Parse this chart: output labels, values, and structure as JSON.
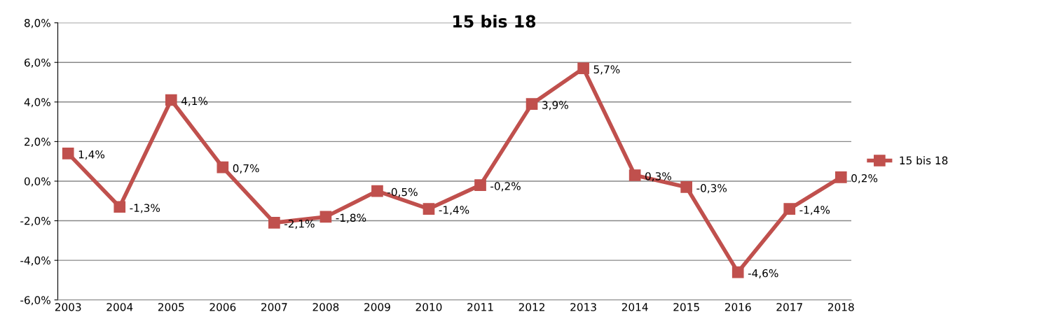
{
  "chart_data": {
    "type": "line",
    "title": "15 bis 18",
    "categories": [
      "2003",
      "2004",
      "2005",
      "2006",
      "2007",
      "2008",
      "2009",
      "2010",
      "2011",
      "2012",
      "2013",
      "2014",
      "2015",
      "2016",
      "2017",
      "2018"
    ],
    "series": [
      {
        "name": "15 bis 18",
        "color": "#c0504d",
        "values": [
          1.4,
          -1.3,
          4.1,
          0.7,
          -2.1,
          -1.8,
          -0.5,
          -1.4,
          -0.2,
          3.9,
          5.7,
          0.3,
          -0.3,
          -4.6,
          -1.4,
          0.2
        ],
        "value_labels": [
          "1,4%",
          "-1,3%",
          "4,1%",
          "0,7%",
          "-2,1%",
          "-1,8%",
          "-0,5%",
          "-1,4%",
          "-0,2%",
          "3,9%",
          "5,7%",
          "0,3%",
          "-0,3%",
          "-4,6%",
          "-1,4%",
          "0,2%"
        ]
      }
    ],
    "ylim": [
      -6,
      8
    ],
    "yticks": [
      {
        "value": -6,
        "label": "-6,0%"
      },
      {
        "value": -4,
        "label": "-4,0%"
      },
      {
        "value": -2,
        "label": "-2,0%"
      },
      {
        "value": 0,
        "label": "0,0%"
      },
      {
        "value": 2,
        "label": "2,0%"
      },
      {
        "value": 4,
        "label": "4,0%"
      },
      {
        "value": 6,
        "label": "6,0%"
      },
      {
        "value": 8,
        "label": "8,0%"
      }
    ],
    "grid": "y",
    "legend": "right",
    "marker": "square",
    "line_style": "solid"
  }
}
